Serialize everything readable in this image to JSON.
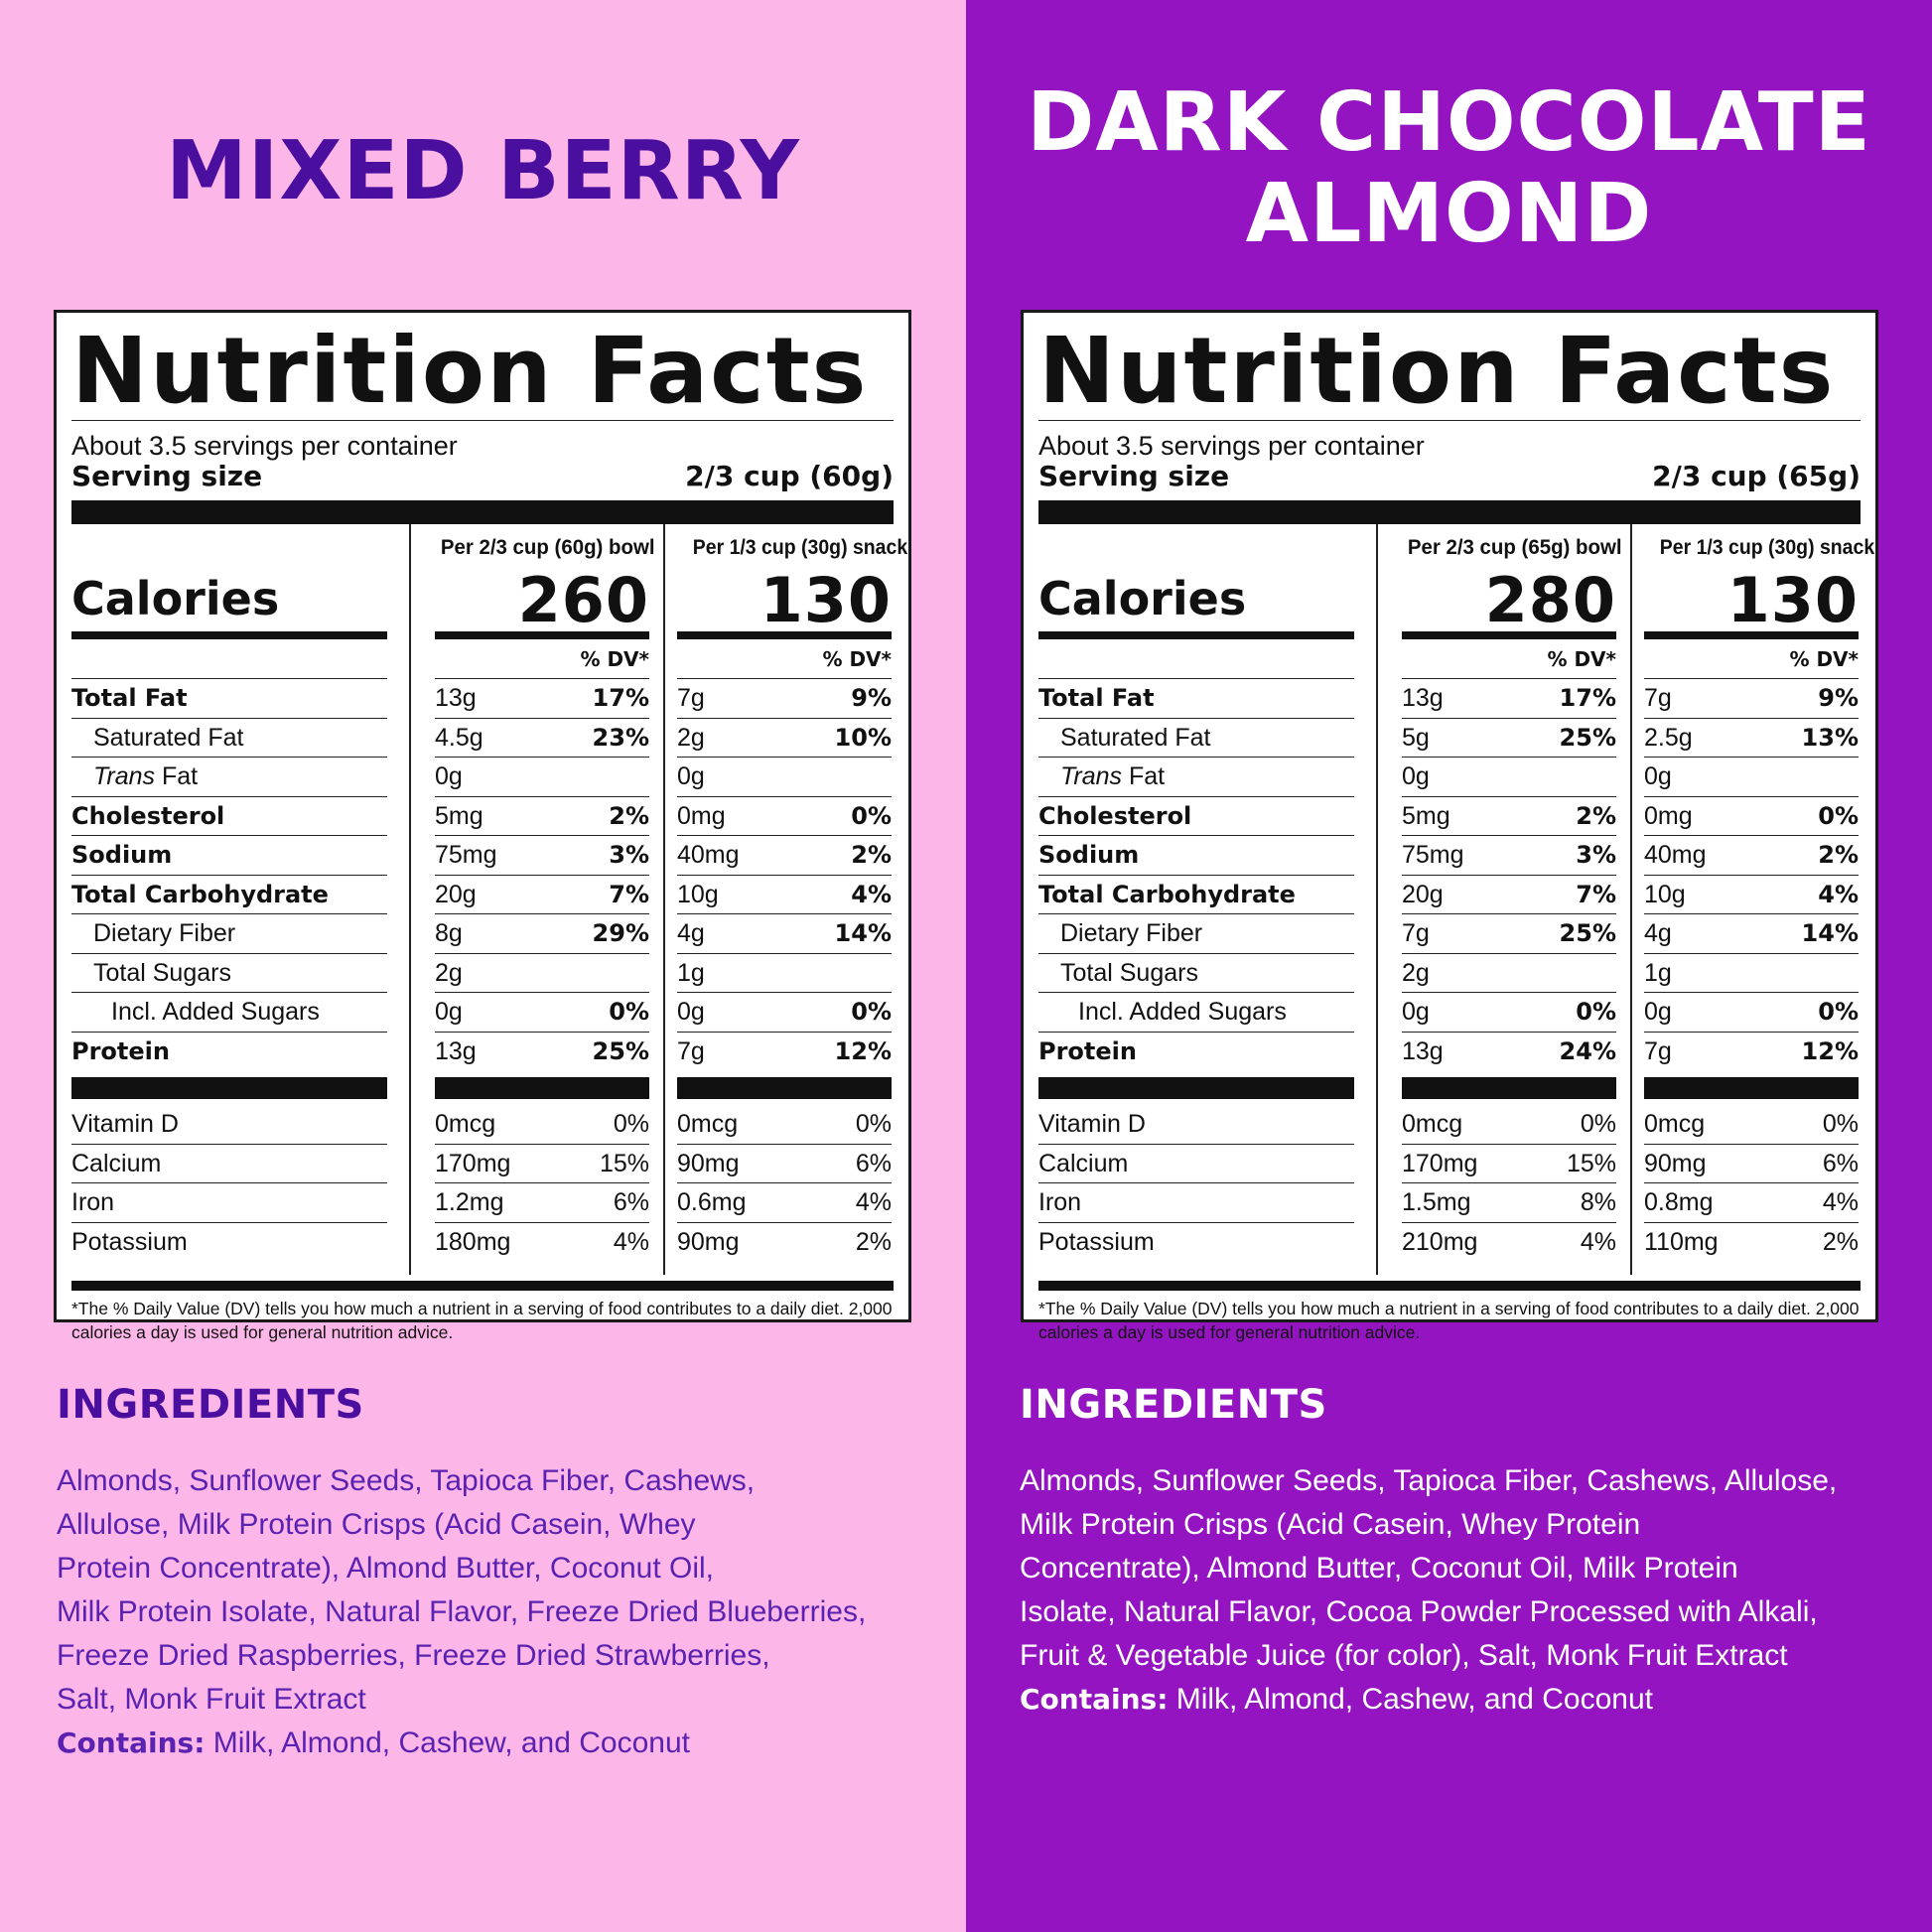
{
  "panels": [
    {
      "flavor": [
        "MIXED BERRY"
      ],
      "nutrition": {
        "title": "Nutrition Facts",
        "servings_per_container": "About 3.5 servings per container",
        "serving_size_label": "Serving size",
        "serving_size_value": "2/3 cup (60g)",
        "calories_label": "Calories",
        "col1_header": "Per 2/3 cup (60g) bowl",
        "col2_header": "Per 1/3 cup (30g) snack",
        "col1_calories": "260",
        "col2_calories": "130",
        "dv_header": "% DV*",
        "rows": [
          {
            "label": "Total Fat",
            "c1_amt": "13g",
            "c1_dv": "17%",
            "c2_amt": "7g",
            "c2_dv": "9%"
          },
          {
            "label": "Saturated Fat",
            "c1_amt": "4.5g",
            "c1_dv": "23%",
            "c2_amt": "2g",
            "c2_dv": "10%"
          },
          {
            "label_italic": "Trans",
            "label_rest": " Fat",
            "c1_amt": "0g",
            "c1_dv": "",
            "c2_amt": "0g",
            "c2_dv": ""
          },
          {
            "label": "Cholesterol",
            "c1_amt": "5mg",
            "c1_dv": "2%",
            "c2_amt": "0mg",
            "c2_dv": "0%"
          },
          {
            "label": "Sodium",
            "c1_amt": "75mg",
            "c1_dv": "3%",
            "c2_amt": "40mg",
            "c2_dv": "2%"
          },
          {
            "label": "Total Carbohydrate",
            "c1_amt": "20g",
            "c1_dv": "7%",
            "c2_amt": "10g",
            "c2_dv": "4%"
          },
          {
            "label": "Dietary Fiber",
            "c1_amt": "8g",
            "c1_dv": "29%",
            "c2_amt": "4g",
            "c2_dv": "14%"
          },
          {
            "label": "Total Sugars",
            "c1_amt": "2g",
            "c1_dv": "",
            "c2_amt": "1g",
            "c2_dv": ""
          },
          {
            "label": "Incl. Added Sugars",
            "c1_amt": "0g",
            "c1_dv": "0%",
            "c2_amt": "0g",
            "c2_dv": "0%"
          },
          {
            "label": "Protein",
            "c1_amt": "13g",
            "c1_dv": "25%",
            "c2_amt": "7g",
            "c2_dv": "12%"
          }
        ],
        "vitamins": [
          {
            "label": "Vitamin D",
            "c1_amt": "0mcg",
            "c1_dv": "0%",
            "c2_amt": "0mcg",
            "c2_dv": "0%"
          },
          {
            "label": "Calcium",
            "c1_amt": "170mg",
            "c1_dv": "15%",
            "c2_amt": "90mg",
            "c2_dv": "6%"
          },
          {
            "label": "Iron",
            "c1_amt": "1.2mg",
            "c1_dv": "6%",
            "c2_amt": "0.6mg",
            "c2_dv": "4%"
          },
          {
            "label": "Potassium",
            "c1_amt": "180mg",
            "c1_dv": "4%",
            "c2_amt": "90mg",
            "c2_dv": "2%"
          }
        ],
        "footnote": "*The % Daily Value (DV) tells you how much a nutrient in a serving of food contributes to a daily diet. 2,000 calories a day is used for general nutrition advice."
      },
      "ingredients_title": "INGREDIENTS",
      "ingredients_lines": [
        "Almonds, Sunflower Seeds, Tapioca Fiber, Cashews,",
        "Allulose, Milk Protein Crisps (Acid Casein, Whey",
        "Protein Concentrate), Almond Butter, Coconut Oil,",
        "Milk Protein Isolate, Natural Flavor, Freeze Dried Blueberries,",
        "Freeze Dried Raspberries, Freeze Dried Strawberries,",
        "Salt, Monk Fruit Extract"
      ],
      "contains_label": "Contains:",
      "contains_text": " Milk, Almond, Cashew, and Coconut"
    },
    {
      "flavor": [
        "DARK CHOCOLATE",
        "ALMOND"
      ],
      "nutrition": {
        "title": "Nutrition Facts",
        "servings_per_container": "About 3.5 servings per container",
        "serving_size_label": "Serving size",
        "serving_size_value": "2/3 cup (65g)",
        "calories_label": "Calories",
        "col1_header": "Per 2/3 cup (65g) bowl",
        "col2_header": "Per 1/3 cup (30g) snack",
        "col1_calories": "280",
        "col2_calories": "130",
        "dv_header": "% DV*",
        "rows": [
          {
            "label": "Total Fat",
            "c1_amt": "13g",
            "c1_dv": "17%",
            "c2_amt": "7g",
            "c2_dv": "9%"
          },
          {
            "label": "Saturated Fat",
            "c1_amt": "5g",
            "c1_dv": "25%",
            "c2_amt": "2.5g",
            "c2_dv": "13%"
          },
          {
            "label_italic": "Trans",
            "label_rest": " Fat",
            "c1_amt": "0g",
            "c1_dv": "",
            "c2_amt": "0g",
            "c2_dv": ""
          },
          {
            "label": "Cholesterol",
            "c1_amt": "5mg",
            "c1_dv": "2%",
            "c2_amt": "0mg",
            "c2_dv": "0%"
          },
          {
            "label": "Sodium",
            "c1_amt": "75mg",
            "c1_dv": "3%",
            "c2_amt": "40mg",
            "c2_dv": "2%"
          },
          {
            "label": "Total Carbohydrate",
            "c1_amt": "20g",
            "c1_dv": "7%",
            "c2_amt": "10g",
            "c2_dv": "4%"
          },
          {
            "label": "Dietary Fiber",
            "c1_amt": "7g",
            "c1_dv": "25%",
            "c2_amt": "4g",
            "c2_dv": "14%"
          },
          {
            "label": "Total Sugars",
            "c1_amt": "2g",
            "c1_dv": "",
            "c2_amt": "1g",
            "c2_dv": ""
          },
          {
            "label": "Incl. Added Sugars",
            "c1_amt": "0g",
            "c1_dv": "0%",
            "c2_amt": "0g",
            "c2_dv": "0%"
          },
          {
            "label": "Protein",
            "c1_amt": "13g",
            "c1_dv": "24%",
            "c2_amt": "7g",
            "c2_dv": "12%"
          }
        ],
        "vitamins": [
          {
            "label": "Vitamin D",
            "c1_amt": "0mcg",
            "c1_dv": "0%",
            "c2_amt": "0mcg",
            "c2_dv": "0%"
          },
          {
            "label": "Calcium",
            "c1_amt": "170mg",
            "c1_dv": "15%",
            "c2_amt": "90mg",
            "c2_dv": "6%"
          },
          {
            "label": "Iron",
            "c1_amt": "1.5mg",
            "c1_dv": "8%",
            "c2_amt": "0.8mg",
            "c2_dv": "4%"
          },
          {
            "label": "Potassium",
            "c1_amt": "210mg",
            "c1_dv": "4%",
            "c2_amt": "110mg",
            "c2_dv": "2%"
          }
        ],
        "footnote": "*The % Daily Value (DV) tells you how much a nutrient in a serving of food contributes to a daily diet. 2,000 calories a day is used for general nutrition advice."
      },
      "ingredients_title": "INGREDIENTS",
      "ingredients_lines": [
        "Almonds, Sunflower Seeds, Tapioca Fiber, Cashews, Allulose,",
        "Milk Protein Crisps (Acid Casein, Whey Protein",
        "Concentrate), Almond Butter, Coconut Oil, Milk Protein",
        "Isolate, Natural Flavor, Cocoa Powder Processed with Alkali,",
        "Fruit & Vegetable Juice (for color), Salt, Monk Fruit Extract"
      ],
      "contains_label": "Contains:",
      "contains_text": " Milk, Almond, Cashew, and Coconut"
    }
  ],
  "colors": {
    "left_background": "#fdb6e8",
    "right_background": "#9314c0",
    "left_title": "#4b0fa0",
    "left_ingredients": "#5a22b0",
    "right_text": "#ffffff"
  }
}
